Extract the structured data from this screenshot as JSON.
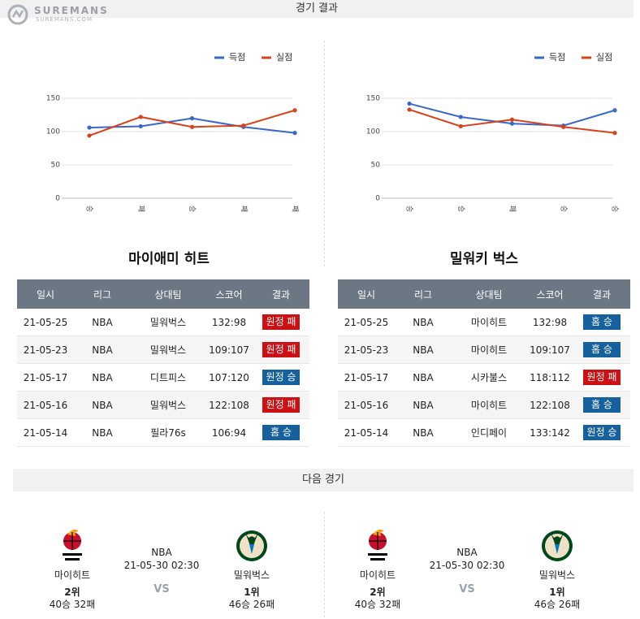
{
  "header": {
    "logo": "SUREMANS",
    "logo_sub": "SUREMANS.COM",
    "title": "경기 결과"
  },
  "chart_data": [
    {
      "type": "line",
      "categories": [
        "승",
        "패",
        "승",
        "패",
        "패"
      ],
      "series": [
        {
          "name": "득점",
          "color": "#3a68c6",
          "values": [
            106,
            108,
            120,
            107,
            98
          ]
        },
        {
          "name": "실점",
          "color": "#d8421c",
          "values": [
            94,
            122,
            107,
            109,
            132
          ]
        }
      ],
      "ylim": [
        0,
        150
      ],
      "yticks": [
        0,
        50,
        100,
        150
      ],
      "grid": true,
      "legend": "top-right"
    },
    {
      "type": "line",
      "categories": [
        "승",
        "승",
        "패",
        "승",
        "승"
      ],
      "series": [
        {
          "name": "득점",
          "color": "#3a68c6",
          "values": [
            142,
            122,
            112,
            109,
            132
          ]
        },
        {
          "name": "실점",
          "color": "#d8421c",
          "values": [
            133,
            108,
            118,
            107,
            98
          ]
        }
      ],
      "ylim": [
        0,
        150
      ],
      "yticks": [
        0,
        50,
        100,
        150
      ],
      "grid": true,
      "legend": "top-right"
    }
  ],
  "teams": [
    {
      "title": "마이애미 히트",
      "table": {
        "columns": [
          "일시",
          "리그",
          "상대팀",
          "스코어",
          "결과"
        ],
        "rows": [
          [
            "21-05-25",
            "NBA",
            "밀워벅스",
            "132:98",
            "원정 패"
          ],
          [
            "21-05-23",
            "NBA",
            "밀워벅스",
            "109:107",
            "원정 패"
          ],
          [
            "21-05-17",
            "NBA",
            "디트피스",
            "107:120",
            "원정 승"
          ],
          [
            "21-05-16",
            "NBA",
            "밀워벅스",
            "122:108",
            "원정 패"
          ],
          [
            "21-05-14",
            "NBA",
            "필라76s",
            "106:94",
            "홈 승"
          ]
        ],
        "badge_colors": [
          "#cc1014",
          "#cc1014",
          "#17609e",
          "#cc1014",
          "#17609e"
        ]
      }
    },
    {
      "title": "밀워키 벅스",
      "table": {
        "columns": [
          "일시",
          "리그",
          "상대팀",
          "스코어",
          "결과"
        ],
        "rows": [
          [
            "21-05-25",
            "NBA",
            "마이히트",
            "132:98",
            "홈 승"
          ],
          [
            "21-05-23",
            "NBA",
            "마이히트",
            "109:107",
            "홈 승"
          ],
          [
            "21-05-17",
            "NBA",
            "시카불스",
            "118:112",
            "원정 패"
          ],
          [
            "21-05-16",
            "NBA",
            "마이히트",
            "122:108",
            "홈 승"
          ],
          [
            "21-05-14",
            "NBA",
            "인디페이",
            "133:142",
            "원정 승"
          ]
        ],
        "badge_colors": [
          "#17609e",
          "#17609e",
          "#cc1014",
          "#17609e",
          "#17609e"
        ]
      }
    }
  ],
  "next_game": {
    "title": "다음 경기",
    "cards": [
      {
        "home": {
          "name": "마이히트",
          "rank": "2위",
          "record": "40승 32패"
        },
        "league": "NBA",
        "time": "21-05-30 02:30",
        "vs": "VS",
        "away": {
          "name": "밀워벅스",
          "rank": "1위",
          "record": "46승 26패"
        }
      },
      {
        "home": {
          "name": "마이히트",
          "rank": "2위",
          "record": "40승 32패"
        },
        "league": "NBA",
        "time": "21-05-30 02:30",
        "vs": "VS",
        "away": {
          "name": "밀워벅스",
          "rank": "1위",
          "record": "46승 26패"
        }
      }
    ]
  }
}
